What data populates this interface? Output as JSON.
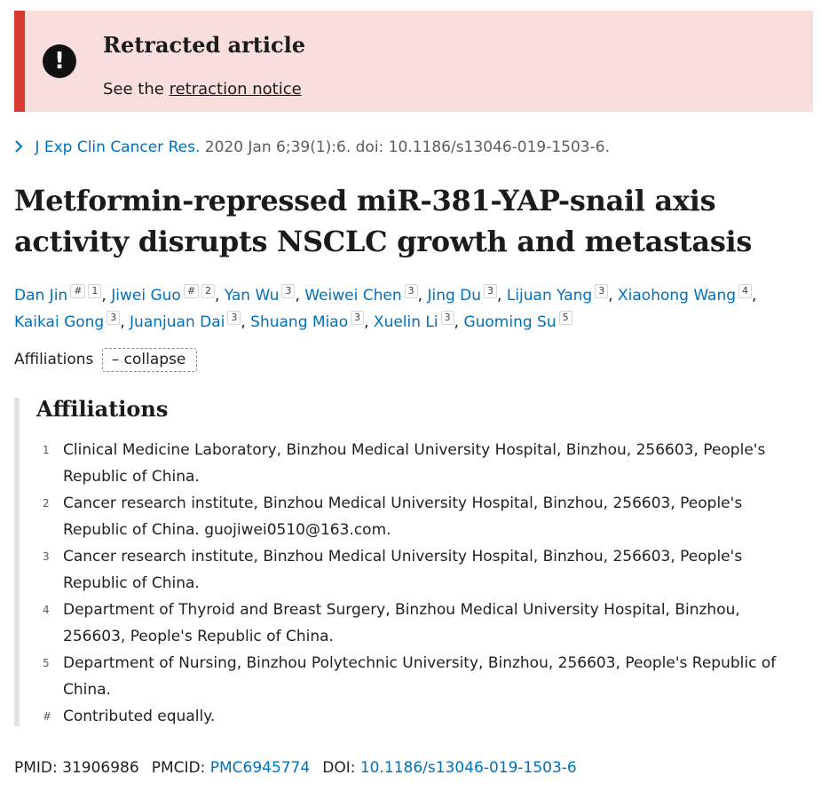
{
  "banner": {
    "icon": "exclamation-icon",
    "title": "Retracted article",
    "text_prefix": "See the ",
    "link_text": "retraction notice",
    "accent_color": "#d83933",
    "background_color": "#f9dede"
  },
  "citation": {
    "chevron_icon": "chevron-right-icon",
    "journal": "J Exp Clin Cancer Res.",
    "details": " 2020 Jan 6;39(1):6. doi: 10.1186/s13046-019-1503-6."
  },
  "title": "Metformin-repressed miR-381-YAP-snail axis activity disrupts NSCLC growth and metastasis",
  "authors": [
    {
      "name": "Dan Jin",
      "marks": [
        "#",
        "1"
      ]
    },
    {
      "name": "Jiwei Guo",
      "marks": [
        "#",
        "2"
      ]
    },
    {
      "name": "Yan Wu",
      "marks": [
        "3"
      ]
    },
    {
      "name": "Weiwei Chen",
      "marks": [
        "3"
      ]
    },
    {
      "name": "Jing Du",
      "marks": [
        "3"
      ]
    },
    {
      "name": "Lijuan Yang",
      "marks": [
        "3"
      ]
    },
    {
      "name": "Xiaohong Wang",
      "marks": [
        "4"
      ]
    },
    {
      "name": "Kaikai Gong",
      "marks": [
        "3"
      ]
    },
    {
      "name": "Juanjuan Dai",
      "marks": [
        "3"
      ]
    },
    {
      "name": "Shuang Miao",
      "marks": [
        "3"
      ]
    },
    {
      "name": "Xuelin Li",
      "marks": [
        "3"
      ]
    },
    {
      "name": "Guoming Su",
      "marks": [
        "5"
      ]
    }
  ],
  "affiliations_toggle": {
    "label": "Affiliations",
    "button": "– collapse"
  },
  "affiliations": {
    "heading": "Affiliations",
    "items": [
      {
        "num": "1",
        "text": "Clinical Medicine Laboratory, Binzhou Medical University Hospital, Binzhou, 256603, People's Republic of China."
      },
      {
        "num": "2",
        "text": "Cancer research institute, Binzhou Medical University Hospital, Binzhou, 256603, People's Republic of China. guojiwei0510@163.com."
      },
      {
        "num": "3",
        "text": "Cancer research institute, Binzhou Medical University Hospital, Binzhou, 256603, People's Republic of China."
      },
      {
        "num": "4",
        "text": "Department of Thyroid and Breast Surgery, Binzhou Medical University Hospital, Binzhou, 256603, People's Republic of China."
      },
      {
        "num": "5",
        "text": "Department of Nursing, Binzhou Polytechnic University, Binzhou, 256603, People's Republic of China."
      },
      {
        "num": "#",
        "text": "Contributed equally."
      }
    ]
  },
  "ids": {
    "pmid_label": "PMID: ",
    "pmid": "31906986",
    "pmcid_label": "PMCID: ",
    "pmcid": "PMC6945774",
    "doi_label": "DOI: ",
    "doi": "10.1186/s13046-019-1503-6"
  },
  "colors": {
    "link": "#0071bc",
    "text": "#212121"
  }
}
